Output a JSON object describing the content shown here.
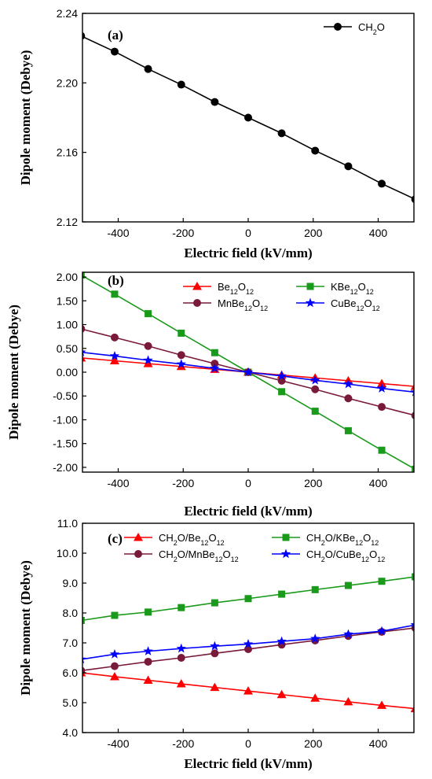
{
  "chart_data": [
    {
      "type": "line",
      "panel_label": "(a)",
      "xlabel": "Electric field (kV/mm)",
      "ylabel": "Dipole moment (Debye)",
      "xlim": [
        -510,
        510
      ],
      "ylim": [
        2.12,
        2.24
      ],
      "xticks": [
        -400,
        -200,
        0,
        200,
        400
      ],
      "yticks": [
        2.12,
        2.16,
        2.2,
        2.24
      ],
      "ytick_labels": [
        "2.12",
        "2.16",
        "2.20",
        "2.24"
      ],
      "legend_position": "top-right",
      "legend_columns": 1,
      "x": [
        -514,
        -411,
        -308,
        -206,
        -103,
        0,
        103,
        206,
        308,
        411,
        514
      ],
      "series": [
        {
          "name": "CH2O",
          "name_parts": [
            [
              "CH",
              false
            ],
            [
              "2",
              true
            ],
            [
              "O",
              false
            ]
          ],
          "color": "#000000",
          "marker": "circle",
          "values": [
            2.227,
            2.218,
            2.208,
            2.199,
            2.189,
            2.18,
            2.171,
            2.161,
            2.152,
            2.142,
            2.133
          ]
        }
      ]
    },
    {
      "type": "line",
      "panel_label": "(b)",
      "xlabel": "Electric field (kV/mm)",
      "ylabel": "Dipole moment (Debye)",
      "xlim": [
        -510,
        510
      ],
      "ylim": [
        -2.1,
        2.1
      ],
      "xticks": [
        -400,
        -200,
        0,
        200,
        400
      ],
      "yticks": [
        2.0,
        1.5,
        1.0,
        0.5,
        0.0,
        -0.5,
        -1.0,
        -1.5,
        -2.0
      ],
      "ytick_labels": [
        "2.00",
        "1.50",
        "1.00",
        "0.50",
        "0.00",
        "-0.50",
        "-1.00",
        "-1.50",
        "-2.00"
      ],
      "legend_position": "top",
      "legend_columns": 2,
      "x": [
        -514,
        -411,
        -308,
        -206,
        -103,
        0,
        103,
        206,
        308,
        411,
        514
      ],
      "series": [
        {
          "name": "Be12O12",
          "name_parts": [
            [
              "Be",
              false
            ],
            [
              "12",
              true
            ],
            [
              "O",
              false
            ],
            [
              "12",
              true
            ]
          ],
          "color": "#ff0000",
          "marker": "triangle",
          "values": [
            0.3,
            0.24,
            0.18,
            0.12,
            0.06,
            0.0,
            -0.06,
            -0.12,
            -0.18,
            -0.24,
            -0.3
          ]
        },
        {
          "name": "KBe12O12",
          "name_parts": [
            [
              "KBe",
              false
            ],
            [
              "12",
              true
            ],
            [
              "O",
              false
            ],
            [
              "12",
              true
            ]
          ],
          "color": "#1a9a1a",
          "marker": "square",
          "values": [
            2.04,
            1.64,
            1.23,
            0.82,
            0.41,
            0.0,
            -0.41,
            -0.82,
            -1.23,
            -1.64,
            -2.04
          ]
        },
        {
          "name": "MnBe12O12",
          "name_parts": [
            [
              "MnBe",
              false
            ],
            [
              "12",
              true
            ],
            [
              "O",
              false
            ],
            [
              "12",
              true
            ]
          ],
          "color": "#7a1a3a",
          "marker": "circle",
          "values": [
            0.91,
            0.73,
            0.55,
            0.36,
            0.18,
            0.0,
            -0.18,
            -0.36,
            -0.55,
            -0.73,
            -0.91
          ]
        },
        {
          "name": "CuBe12O12",
          "name_parts": [
            [
              "CuBe",
              false
            ],
            [
              "12",
              true
            ],
            [
              "O",
              false
            ],
            [
              "12",
              true
            ]
          ],
          "color": "#0000ff",
          "marker": "star",
          "values": [
            0.42,
            0.34,
            0.25,
            0.17,
            0.08,
            0.0,
            -0.08,
            -0.17,
            -0.25,
            -0.34,
            -0.42
          ]
        }
      ]
    },
    {
      "type": "line",
      "panel_label": "(c)",
      "xlabel": "Electric field (kV/mm)",
      "ylabel": "Dipole moment (Debye)",
      "xlim": [
        -510,
        510
      ],
      "ylim": [
        4.0,
        11.0
      ],
      "xticks": [
        -400,
        -200,
        0,
        200,
        400
      ],
      "yticks": [
        4.0,
        5.0,
        6.0,
        7.0,
        8.0,
        9.0,
        10.0,
        11.0
      ],
      "ytick_labels": [
        "4.0",
        "5.0",
        "6.0",
        "7.0",
        "8.0",
        "9.0",
        "10.0",
        "11.0"
      ],
      "legend_position": "top",
      "legend_columns": 2,
      "x": [
        -514,
        -411,
        -308,
        -206,
        -103,
        0,
        103,
        206,
        308,
        411,
        514
      ],
      "series": [
        {
          "name": "CH2O/Be12O12",
          "name_parts": [
            [
              "CH",
              false
            ],
            [
              "2",
              true
            ],
            [
              "O/Be",
              false
            ],
            [
              "12",
              true
            ],
            [
              "O",
              false
            ],
            [
              "12",
              true
            ]
          ],
          "color": "#ff0000",
          "marker": "triangle",
          "values": [
            6.0,
            5.87,
            5.75,
            5.63,
            5.51,
            5.39,
            5.27,
            5.15,
            5.03,
            4.91,
            4.8
          ]
        },
        {
          "name": "CH2O/KBe12O12",
          "name_parts": [
            [
              "CH",
              false
            ],
            [
              "2",
              true
            ],
            [
              "O/KBe",
              false
            ],
            [
              "12",
              true
            ],
            [
              "O",
              false
            ],
            [
              "12",
              true
            ]
          ],
          "color": "#1a9a1a",
          "marker": "square",
          "values": [
            7.75,
            7.92,
            8.03,
            8.18,
            8.34,
            8.48,
            8.63,
            8.78,
            8.92,
            9.06,
            9.21
          ]
        },
        {
          "name": "CH2O/MnBe12O12",
          "name_parts": [
            [
              "CH",
              false
            ],
            [
              "2",
              true
            ],
            [
              "O/MnBe",
              false
            ],
            [
              "12",
              true
            ],
            [
              "O",
              false
            ],
            [
              "12",
              true
            ]
          ],
          "color": "#7a1a3a",
          "marker": "circle",
          "values": [
            6.07,
            6.22,
            6.37,
            6.5,
            6.65,
            6.79,
            6.94,
            7.08,
            7.23,
            7.37,
            7.5
          ]
        },
        {
          "name": "CH2O/CuBe12O12",
          "name_parts": [
            [
              "CH",
              false
            ],
            [
              "2",
              true
            ],
            [
              "O/CuBe",
              false
            ],
            [
              "12",
              true
            ],
            [
              "O",
              false
            ],
            [
              "12",
              true
            ]
          ],
          "color": "#0000ff",
          "marker": "star",
          "values": [
            6.45,
            6.62,
            6.72,
            6.81,
            6.89,
            6.96,
            7.05,
            7.14,
            7.29,
            7.39,
            7.6
          ]
        }
      ]
    }
  ]
}
